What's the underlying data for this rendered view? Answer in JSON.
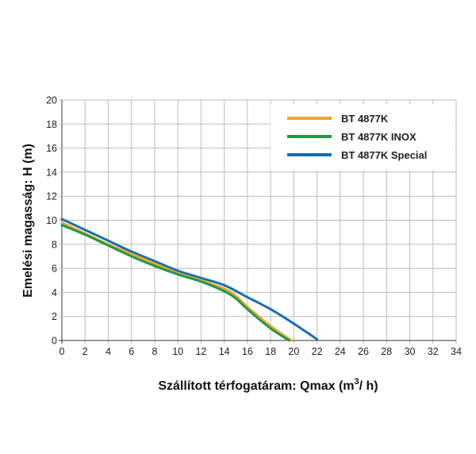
{
  "chart_data": {
    "type": "line",
    "title": "",
    "xlabel": "Szállított térfogatáram: Qmax (m",
    "xlabel_sup": "3",
    "xlabel_tail": "/ h)",
    "ylabel": "Emelési magasság: H (m)",
    "xlim": [
      0,
      34
    ],
    "ylim": [
      0,
      20
    ],
    "xticks": [
      0,
      2,
      4,
      6,
      8,
      10,
      12,
      14,
      16,
      18,
      20,
      22,
      24,
      26,
      28,
      30,
      32,
      34
    ],
    "yticks": [
      0,
      2,
      4,
      6,
      8,
      10,
      12,
      14,
      16,
      18,
      20
    ],
    "grid": true,
    "legend_position": "top-right",
    "series": [
      {
        "name": "BT 4877K",
        "color": "#f2a42a",
        "x": [
          0,
          2,
          4,
          6,
          8,
          10,
          12,
          14,
          15,
          16,
          18,
          19.8
        ],
        "y": [
          9.8,
          8.9,
          8.0,
          7.2,
          6.4,
          5.6,
          5.0,
          4.3,
          3.7,
          2.8,
          1.2,
          0
        ]
      },
      {
        "name": "BT 4877K INOX",
        "color": "#1f9a48",
        "x": [
          0,
          2,
          4,
          6,
          8,
          10,
          12,
          14,
          15,
          16,
          18,
          19.6
        ],
        "y": [
          9.6,
          8.8,
          7.9,
          7.0,
          6.2,
          5.5,
          4.9,
          4.1,
          3.5,
          2.6,
          1.0,
          0
        ]
      },
      {
        "name": "BT 4877K Special",
        "color": "#1b6db3",
        "x": [
          0,
          2,
          4,
          6,
          8,
          10,
          12,
          14,
          16,
          18,
          20,
          22
        ],
        "y": [
          10.1,
          9.2,
          8.3,
          7.4,
          6.6,
          5.8,
          5.2,
          4.6,
          3.6,
          2.6,
          1.4,
          0.1
        ]
      }
    ]
  }
}
